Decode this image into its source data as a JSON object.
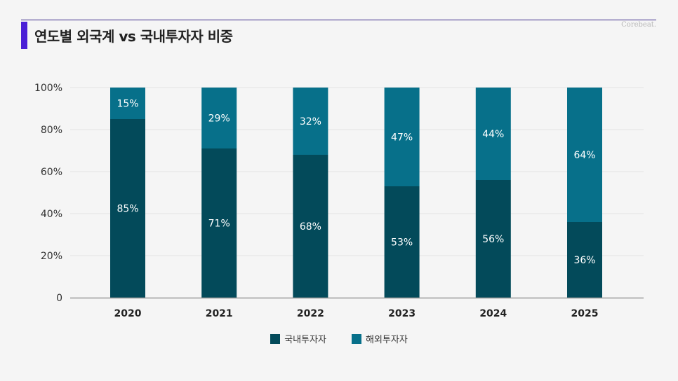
{
  "header": {
    "title": "연도별 외국계 vs 국내투자자 비중",
    "brand": "Corebeat."
  },
  "colors": {
    "domestic": "#034a5a",
    "overseas": "#07708a",
    "accent": "#4a1fd6"
  },
  "chart_data": {
    "type": "bar",
    "stacked": true,
    "title": "연도별 외국계 vs 국내투자자 비중",
    "categories": [
      "2020",
      "2021",
      "2022",
      "2023",
      "2024",
      "2025"
    ],
    "series": [
      {
        "name": "국내투자자",
        "values": [
          85,
          71,
          68,
          53,
          56,
          36
        ],
        "labels": [
          "85%",
          "71%",
          "68%",
          "53%",
          "56%",
          "36%"
        ]
      },
      {
        "name": "해외투자자",
        "values": [
          15,
          29,
          32,
          47,
          44,
          64
        ],
        "labels": [
          "15%",
          "29%",
          "32%",
          "47%",
          "44%",
          "64%"
        ]
      }
    ],
    "ylim": [
      0,
      100
    ],
    "yticks": [
      0,
      20,
      40,
      60,
      80,
      100
    ],
    "ytick_labels": [
      "0",
      "20%",
      "40%",
      "60%",
      "80%",
      "100%"
    ],
    "grid": true,
    "legend": "bottom-center"
  }
}
